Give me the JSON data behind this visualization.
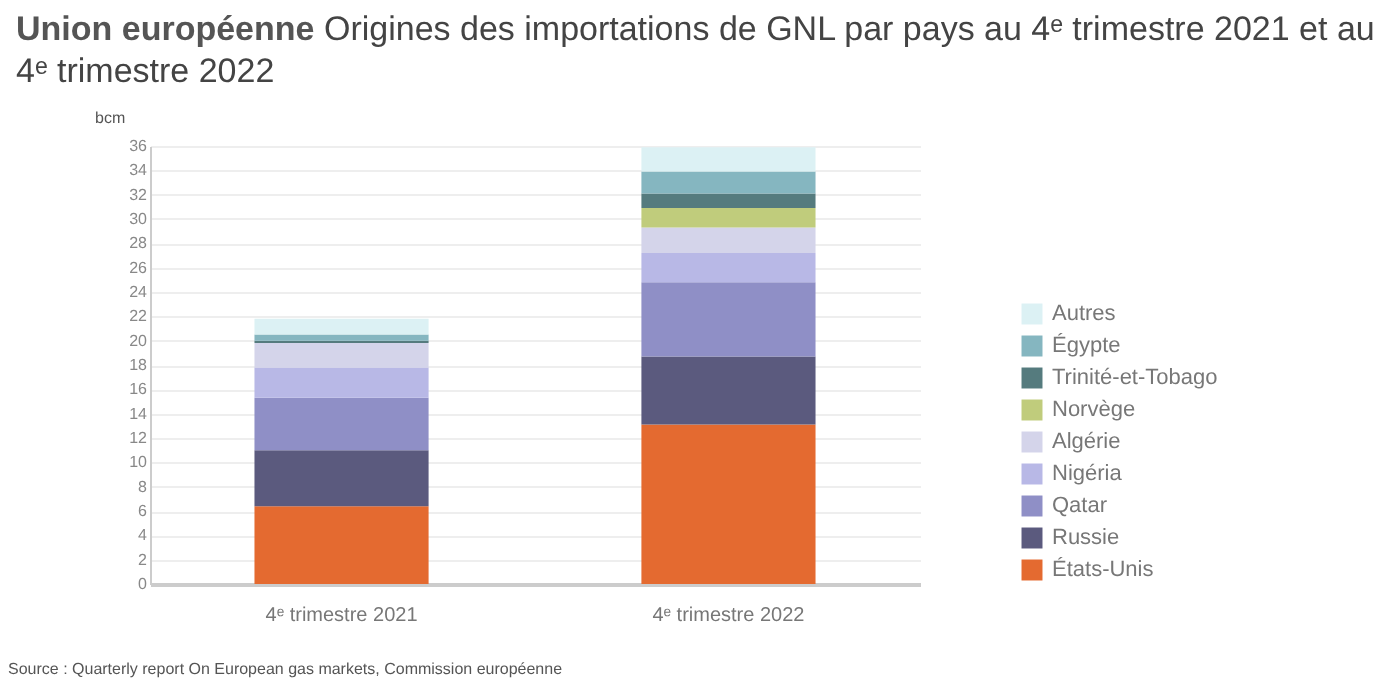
{
  "chart_data": {
    "type": "bar",
    "stacked": true,
    "title": "Union européenne",
    "subtitle": "Origines des importations de GNL par pays au 4ᵉ trimestre 2021 et au 4ᵉ trimestre 2022",
    "ylabel": "bcm",
    "categories": [
      "4ᵉ trimestre 2021",
      "4ᵉ trimestre 2022"
    ],
    "series": [
      {
        "name": "États-Unis",
        "color": "#e46a30",
        "values": [
          6.4,
          13.1
        ]
      },
      {
        "name": "Russie",
        "color": "#5b5a7e",
        "values": [
          4.6,
          5.6
        ]
      },
      {
        "name": "Qatar",
        "color": "#8f8fc6",
        "values": [
          4.3,
          6.1
        ]
      },
      {
        "name": "Nigéria",
        "color": "#b8b8e6",
        "values": [
          2.5,
          2.4
        ]
      },
      {
        "name": "Algérie",
        "color": "#d4d4ea",
        "values": [
          2.0,
          2.1
        ]
      },
      {
        "name": "Norvège",
        "color": "#c0cc7c",
        "values": [
          0,
          1.6
        ]
      },
      {
        "name": "Trinité-et-Tobago",
        "color": "#557b7e",
        "values": [
          0.2,
          1.2
        ]
      },
      {
        "name": "Égypte",
        "color": "#85b6c0",
        "values": [
          0.5,
          1.8
        ]
      },
      {
        "name": "Autres",
        "color": "#dcf1f4",
        "values": [
          1.3,
          2.0
        ]
      }
    ],
    "ylim": [
      0,
      36
    ],
    "yticks": [
      0,
      2,
      4,
      6,
      8,
      10,
      12,
      14,
      16,
      18,
      20,
      22,
      24,
      26,
      28,
      30,
      32,
      34,
      36
    ],
    "grid": "y",
    "legend": "right",
    "annotations": [
      "Source : Quarterly report On European gas markets, Commission européenne"
    ]
  }
}
